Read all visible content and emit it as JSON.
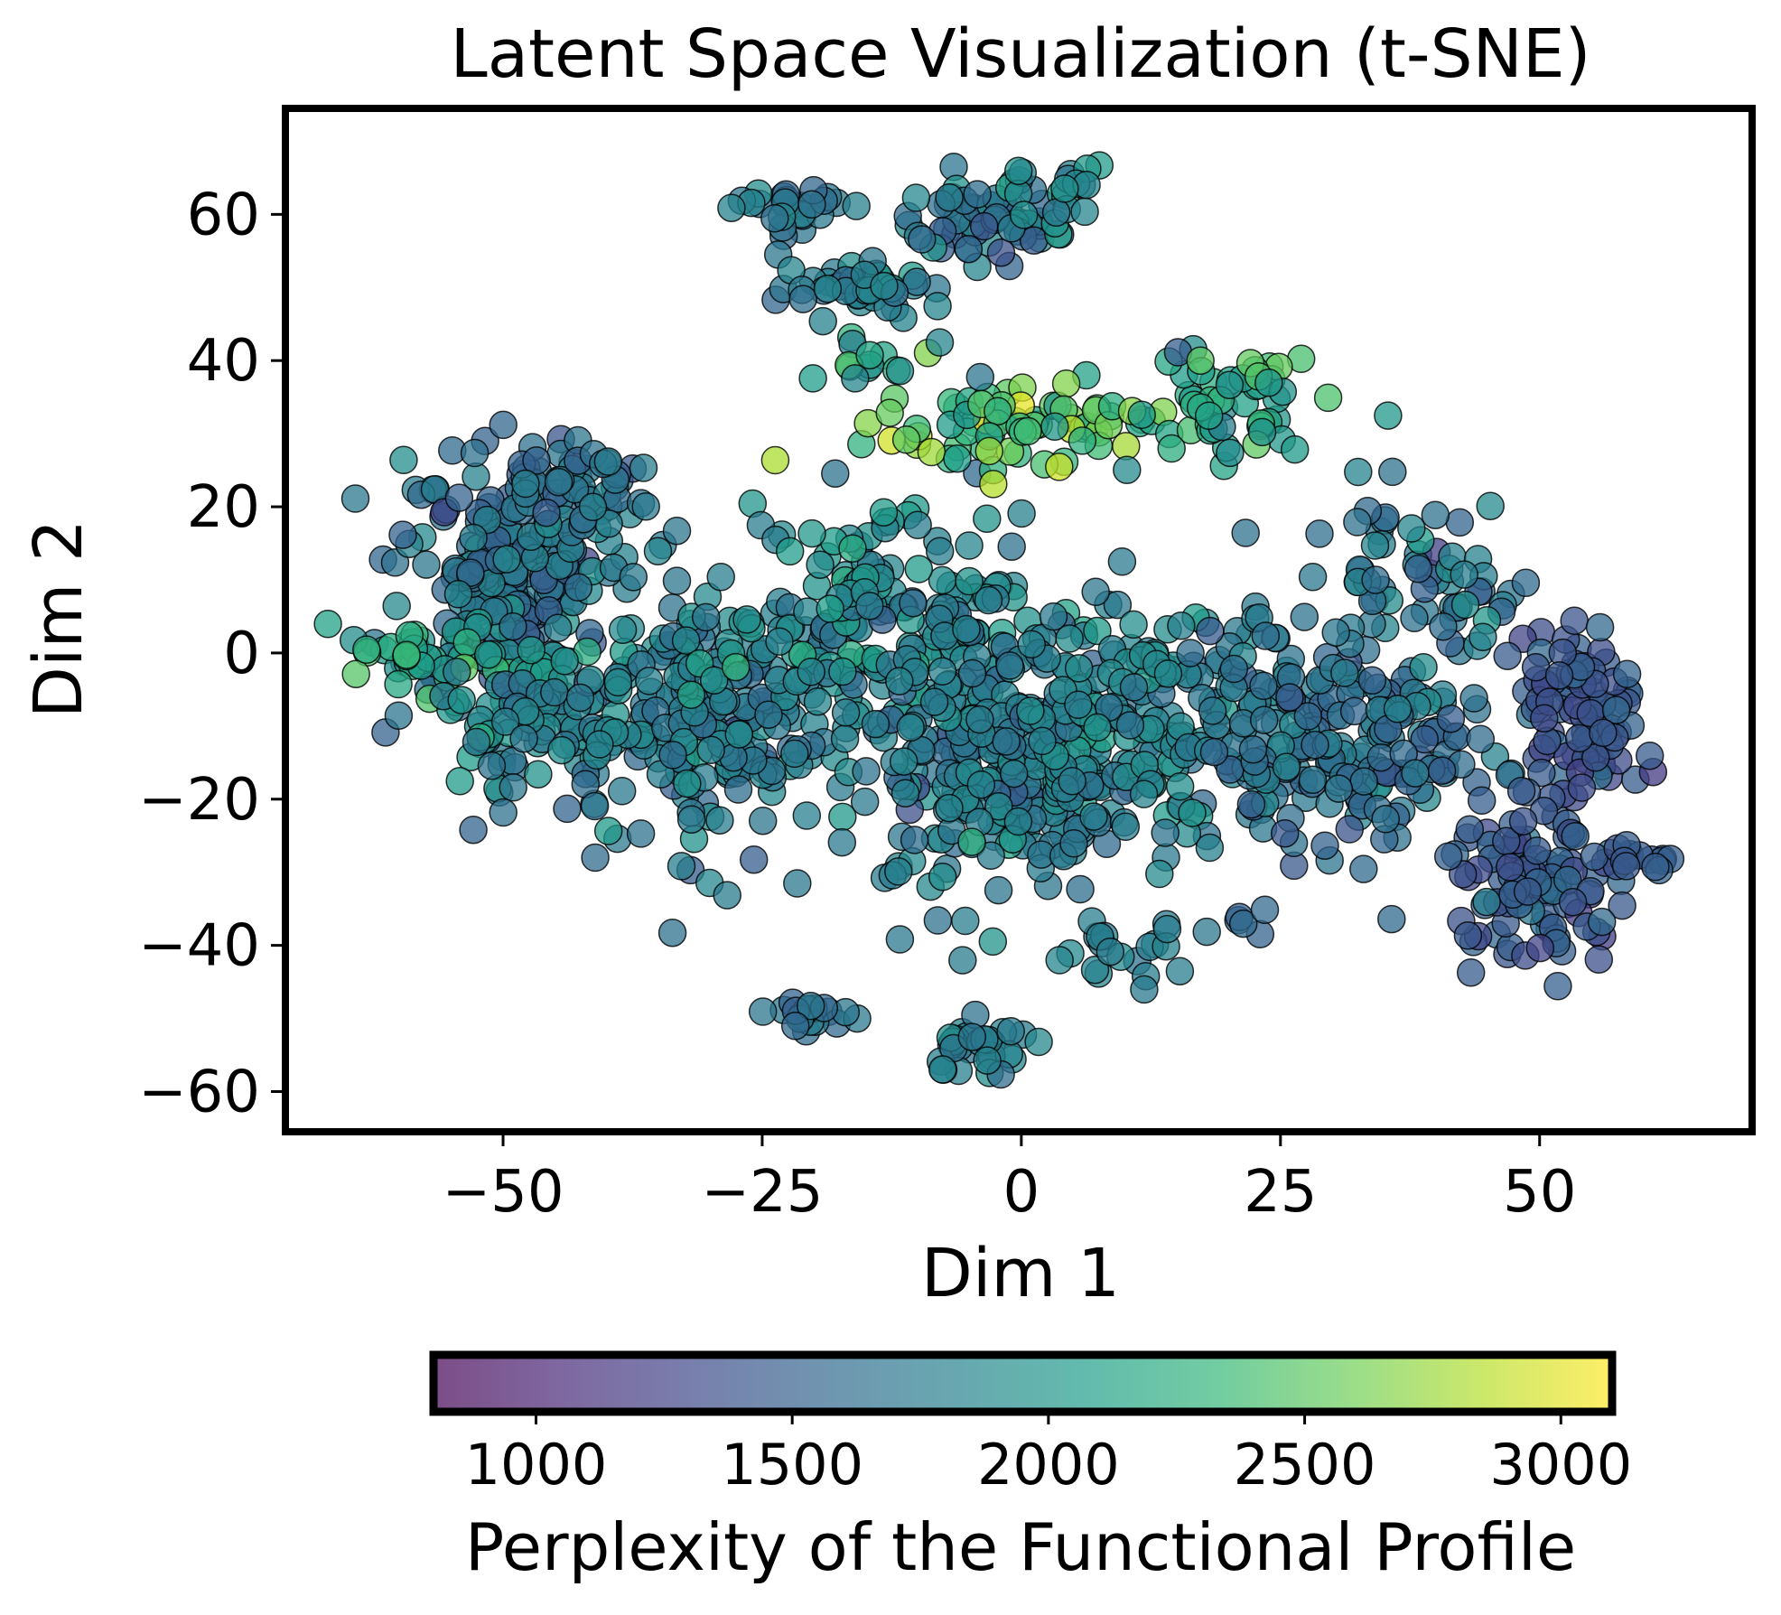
{
  "chart_data": {
    "type": "scatter",
    "title": "Latent Space Visualization (t-SNE)",
    "xlabel": "Dim 1",
    "ylabel": "Dim 2",
    "xlim": [
      -71,
      70.5
    ],
    "ylim": [
      -65.5,
      74.5
    ],
    "xticks": [
      -50,
      -25,
      0,
      25,
      50
    ],
    "yticks": [
      60,
      40,
      20,
      0,
      -20,
      -40,
      -60
    ],
    "grid": false,
    "legend": "none",
    "colorbar": {
      "label": "Perplexity of the Functional Profile",
      "range": [
        800,
        3100
      ],
      "ticks": [
        1000,
        1500,
        2000,
        2500,
        3000
      ],
      "colormap": "viridis",
      "colors": [
        "#440154",
        "#482878",
        "#3e4989",
        "#31688e",
        "#26828e",
        "#1f9e89",
        "#35b779",
        "#6ece58",
        "#b5de2b",
        "#fde725"
      ]
    },
    "marker": {
      "opacity": 0.75,
      "edge_color": "#000000"
    },
    "clusters": [
      {
        "cx": -22,
        "cy": 61,
        "sx": 3,
        "sy": 1.5,
        "n": 25,
        "v": 1750,
        "vs": 120
      },
      {
        "cx": -4,
        "cy": 59,
        "sx": 4,
        "sy": 3,
        "n": 55,
        "v": 1650,
        "vs": 150
      },
      {
        "cx": 3,
        "cy": 63,
        "sx": 3,
        "sy": 2.5,
        "n": 20,
        "v": 1900,
        "vs": 200
      },
      {
        "cx": -15,
        "cy": 50,
        "sx": 4,
        "sy": 2,
        "n": 45,
        "v": 1750,
        "vs": 120
      },
      {
        "cx": -14,
        "cy": 39,
        "sx": 3,
        "sy": 2,
        "n": 14,
        "v": 2100,
        "vs": 200
      },
      {
        "cx": 0,
        "cy": 31,
        "sx": 7,
        "sy": 3,
        "n": 75,
        "v": 2400,
        "vs": 280
      },
      {
        "cx": 19,
        "cy": 34,
        "sx": 5,
        "sy": 4,
        "n": 55,
        "v": 2150,
        "vs": 250
      },
      {
        "cx": -50,
        "cy": 12,
        "sx": 5,
        "sy": 9,
        "n": 220,
        "v": 1650,
        "vs": 150
      },
      {
        "cx": -42,
        "cy": 22,
        "sx": 3,
        "sy": 3,
        "n": 40,
        "v": 1650,
        "vs": 120
      },
      {
        "cx": -58,
        "cy": 0,
        "sx": 4,
        "sy": 3,
        "n": 40,
        "v": 2150,
        "vs": 200
      },
      {
        "cx": -48,
        "cy": -8,
        "sx": 4,
        "sy": 5,
        "n": 60,
        "v": 1900,
        "vs": 150
      },
      {
        "cx": -30,
        "cy": -10,
        "sx": 8,
        "sy": 9,
        "n": 260,
        "v": 1750,
        "vs": 130
      },
      {
        "cx": -14,
        "cy": 5,
        "sx": 7,
        "sy": 7,
        "n": 150,
        "v": 1850,
        "vs": 170
      },
      {
        "cx": -2,
        "cy": -15,
        "sx": 6,
        "sy": 10,
        "n": 230,
        "v": 1750,
        "vs": 130
      },
      {
        "cx": 12,
        "cy": -10,
        "sx": 8,
        "sy": 8,
        "n": 200,
        "v": 1800,
        "vs": 130
      },
      {
        "cx": 32,
        "cy": -12,
        "sx": 7,
        "sy": 8,
        "n": 180,
        "v": 1650,
        "vs": 130
      },
      {
        "cx": 38,
        "cy": 10,
        "sx": 5,
        "sy": 6,
        "n": 60,
        "v": 1700,
        "vs": 150
      },
      {
        "cx": 54,
        "cy": -8,
        "sx": 3,
        "sy": 6,
        "n": 90,
        "v": 1400,
        "vs": 100
      },
      {
        "cx": 50,
        "cy": -32,
        "sx": 5,
        "sy": 5,
        "n": 100,
        "v": 1450,
        "vs": 100
      },
      {
        "cx": -21,
        "cy": -50,
        "sx": 2,
        "sy": 1.5,
        "n": 18,
        "v": 1650,
        "vs": 100
      },
      {
        "cx": -4,
        "cy": -54,
        "sx": 2.5,
        "sy": 2,
        "n": 30,
        "v": 1750,
        "vs": 130
      },
      {
        "cx": 10,
        "cy": -41,
        "sx": 3,
        "sy": 2,
        "n": 20,
        "v": 1750,
        "vs": 100
      },
      {
        "cx": 22,
        "cy": -37,
        "sx": 1.5,
        "sy": 1,
        "n": 6,
        "v": 1600,
        "vs": 80
      },
      {
        "cx": 61,
        "cy": -28,
        "sx": 2,
        "sy": 1.5,
        "n": 12,
        "v": 1500,
        "vs": 80
      }
    ]
  }
}
